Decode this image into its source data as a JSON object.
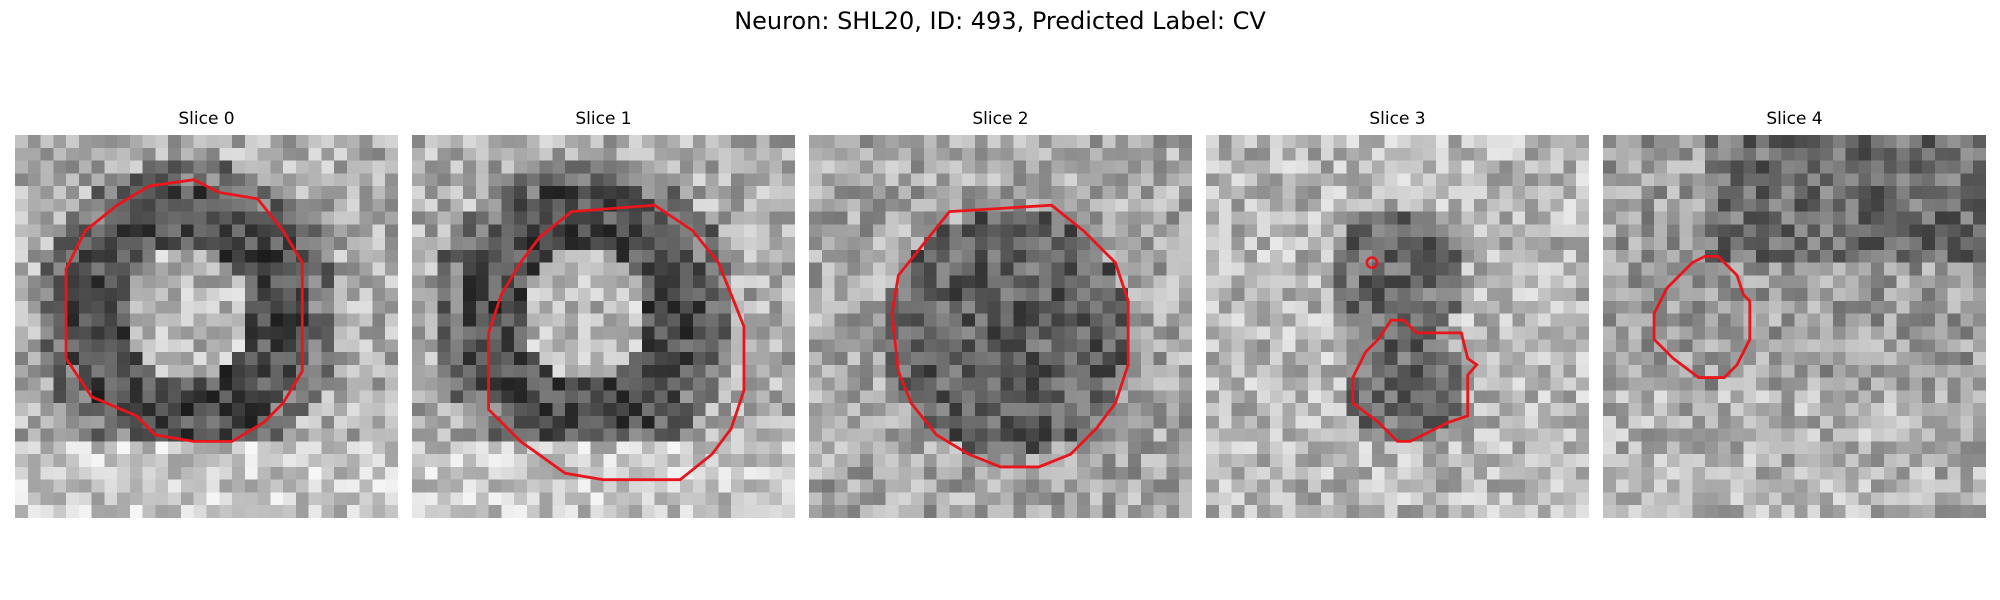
{
  "figure": {
    "title": "Neuron: SHL20, ID: 493, Predicted Label: CV"
  },
  "panels": [
    {
      "title": "Slice 0",
      "pattern": "dark-ring-bright-center",
      "contour_color": "#e8161c"
    },
    {
      "title": "Slice 1",
      "pattern": "dark-ring-bright-center",
      "contour_color": "#e8161c"
    },
    {
      "title": "Slice 2",
      "pattern": "dark-textured-disc",
      "contour_color": "#e8161c"
    },
    {
      "title": "Slice 3",
      "pattern": "faint-dark-blob",
      "contour_color": "#e8161c"
    },
    {
      "title": "Slice 4",
      "pattern": "diffuse-dark-top",
      "contour_color": "#e8161c"
    }
  ],
  "colors": {
    "contour": "#e8161c",
    "colormap": "grayscale"
  }
}
